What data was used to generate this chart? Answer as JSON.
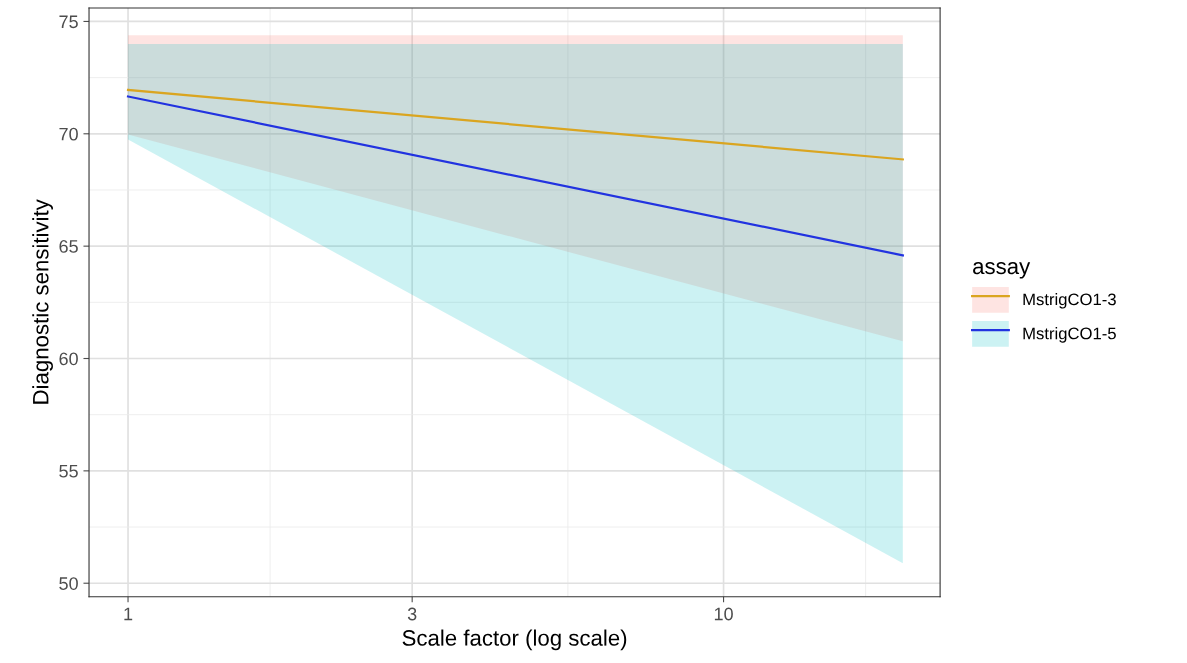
{
  "chart_data": {
    "type": "line",
    "xlabel": "Scale factor (log scale)",
    "ylabel": "Diagnostic sensitivity",
    "legend_title": "assay",
    "x": [
      1,
      20
    ],
    "log": "x",
    "xlim": [
      0.86,
      23.1
    ],
    "xticks": [
      1,
      3,
      10
    ],
    "ylim": [
      49.4,
      75.6
    ],
    "yticks": [
      50,
      55,
      60,
      65,
      70,
      75
    ],
    "series": [
      {
        "name": "MstrigCO1-3",
        "color": "#daa520",
        "colors": [
          "#daa520",
          "#f8766d"
        ],
        "values": [
          71.95,
          68.86
        ],
        "lower": [
          69.97,
          60.77
        ],
        "upper": [
          74.38,
          74.38
        ]
      },
      {
        "name": "MstrigCO1-5",
        "color": "#2233e0",
        "colors": [
          "#2233e0",
          "#00bfc4"
        ],
        "values": [
          71.66,
          64.59
        ],
        "lower": [
          69.75,
          50.89
        ],
        "upper": [
          74.0,
          74.0
        ]
      }
    ],
    "grid": true,
    "legend": "right",
    "line_style": "solid"
  }
}
